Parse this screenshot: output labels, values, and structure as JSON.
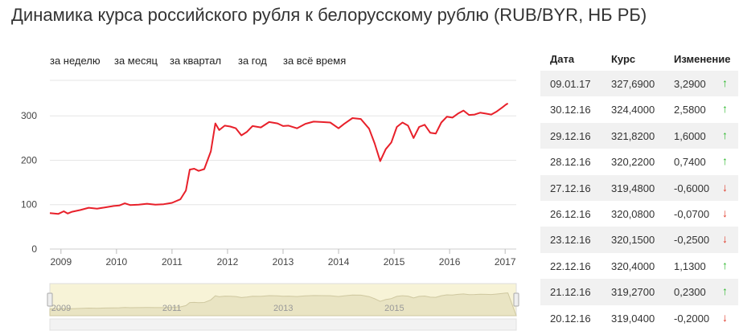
{
  "title": "Динамика курса российского рубля к белорусскому рублю (RUB/BYR, НБ РБ)",
  "period_tabs": [
    "за неделю",
    "за месяц",
    "за квартал",
    "за год",
    "за всё время"
  ],
  "colors": {
    "line": "#e8202a",
    "grid": "#e6e6e6",
    "navigator_fill": "#f7f3d7",
    "up": "#2db82d",
    "down": "#e03b2a"
  },
  "chart_data": {
    "type": "line",
    "title": "",
    "xlabel": "",
    "ylabel": "",
    "xlim": [
      2008.8,
      2017.2
    ],
    "ylim": [
      0,
      380
    ],
    "yticks": [
      0,
      100,
      200,
      300
    ],
    "xticks": [
      2009,
      2010,
      2011,
      2012,
      2013,
      2014,
      2015,
      2016,
      2017
    ],
    "grid": true,
    "series": [
      {
        "x": [
          2008.8,
          2008.95,
          2009.05,
          2009.12,
          2009.2,
          2009.35,
          2009.5,
          2009.65,
          2009.8,
          2009.95,
          2010.05,
          2010.15,
          2010.25,
          2010.4,
          2010.55,
          2010.7,
          2010.85,
          2011.0,
          2011.15,
          2011.25,
          2011.32,
          2011.4,
          2011.48,
          2011.58,
          2011.7,
          2011.78,
          2011.85,
          2011.95,
          2012.05,
          2012.15,
          2012.25,
          2012.35,
          2012.45,
          2012.6,
          2012.75,
          2012.9,
          2013.0,
          2013.1,
          2013.25,
          2013.4,
          2013.55,
          2013.7,
          2013.85,
          2014.0,
          2014.1,
          2014.25,
          2014.4,
          2014.55,
          2014.65,
          2014.75,
          2014.85,
          2014.95,
          2015.05,
          2015.15,
          2015.25,
          2015.35,
          2015.45,
          2015.55,
          2015.65,
          2015.75,
          2015.85,
          2015.95,
          2016.05,
          2016.15,
          2016.25,
          2016.35,
          2016.45,
          2016.55,
          2016.65,
          2016.75,
          2016.85,
          2016.95,
          2017.01,
          2017.05
        ],
        "values": [
          81,
          79,
          85,
          80,
          84,
          88,
          93,
          91,
          94,
          97,
          98,
          103,
          99,
          100,
          102,
          100,
          101,
          104,
          112,
          132,
          179,
          181,
          176,
          180,
          220,
          283,
          268,
          278,
          276,
          272,
          256,
          264,
          277,
          274,
          286,
          283,
          277,
          278,
          272,
          282,
          287,
          286,
          285,
          272,
          282,
          295,
          293,
          271,
          238,
          198,
          225,
          240,
          275,
          285,
          278,
          250,
          275,
          280,
          262,
          260,
          285,
          298,
          296,
          305,
          312,
          302,
          303,
          307,
          305,
          303,
          310,
          319,
          325,
          328
        ]
      }
    ],
    "navigator_labels": [
      "2009",
      "2011",
      "2013",
      "2015"
    ]
  },
  "table": {
    "headers": {
      "date": "Дата",
      "rate": "Курс",
      "change": "Изменение"
    },
    "rows": [
      {
        "date": "09.01.17",
        "rate": "327,6900",
        "change": "3,2900",
        "dir": "up"
      },
      {
        "date": "30.12.16",
        "rate": "324,4000",
        "change": "2,5800",
        "dir": "up"
      },
      {
        "date": "29.12.16",
        "rate": "321,8200",
        "change": "1,6000",
        "dir": "up"
      },
      {
        "date": "28.12.16",
        "rate": "320,2200",
        "change": "0,7400",
        "dir": "up"
      },
      {
        "date": "27.12.16",
        "rate": "319,4800",
        "change": "-0,6000",
        "dir": "down"
      },
      {
        "date": "26.12.16",
        "rate": "320,0800",
        "change": "-0,0700",
        "dir": "down"
      },
      {
        "date": "23.12.16",
        "rate": "320,1500",
        "change": "-0,2500",
        "dir": "down"
      },
      {
        "date": "22.12.16",
        "rate": "320,4000",
        "change": "1,1300",
        "dir": "up"
      },
      {
        "date": "21.12.16",
        "rate": "319,2700",
        "change": "0,2300",
        "dir": "up"
      },
      {
        "date": "20.12.16",
        "rate": "319,0400",
        "change": "-0,2000",
        "dir": "down"
      }
    ]
  }
}
